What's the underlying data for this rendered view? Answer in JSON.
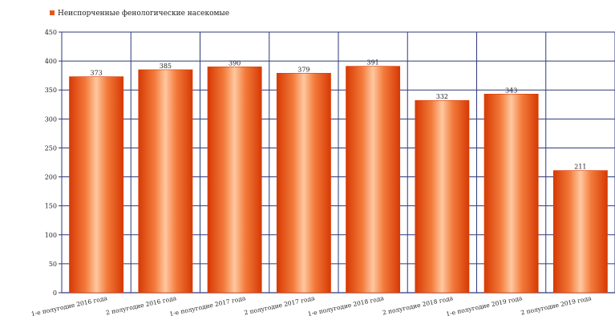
{
  "chart_data": {
    "type": "bar",
    "title": "",
    "xlabel": "",
    "ylabel": "",
    "legend": {
      "position": "top-left",
      "entries": [
        "Неиспорченные фенологические насекомые"
      ]
    },
    "categories": [
      "1-е полугодие 2016 года",
      "2 полугодие 2016 года",
      "1-е полугодие 2017 года",
      "2 полугодие 2017 года",
      "1-е полугодие 2018 года",
      "2 полугодие 2018 года",
      "1-е полугодие 2019 года",
      "2 полугодие 2019 года"
    ],
    "series": [
      {
        "name": "Неиспорченные фенологические насекомые",
        "values": [
          373,
          385,
          390,
          379,
          391,
          332,
          343,
          211
        ]
      }
    ],
    "ylim": [
      0,
      450
    ],
    "yticks": [
      0,
      50,
      100,
      150,
      200,
      250,
      300,
      350,
      400,
      450
    ],
    "grid": true,
    "colors": {
      "bar_edge": "#d93a05",
      "bar_highlight": "#ffc8a0",
      "grid": "#2e3a7a",
      "axis": "#2e3a7a"
    }
  }
}
